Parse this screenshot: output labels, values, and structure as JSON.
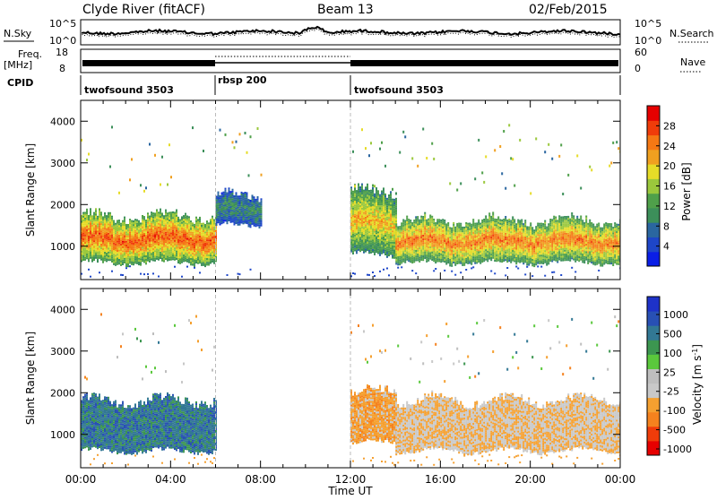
{
  "header": {
    "station": "Clyde River (fitACF)",
    "beam": "Beam 13",
    "date": "02/Feb/2015"
  },
  "noise_panel": {
    "left_label": "N.Sky",
    "left_ticks": [
      "10^5",
      "10^0"
    ],
    "right_ticks": [
      "10^5",
      "10^0"
    ],
    "right_label": "N.Search"
  },
  "freq_panel": {
    "left_label_line1": "Freq.",
    "left_label_line2": "[MHz]",
    "left_ticks": [
      "18",
      "8"
    ],
    "right_ticks": [
      "60",
      "0"
    ],
    "right_label": "Nave"
  },
  "cpid": {
    "label": "CPID",
    "segments": [
      {
        "name": "twofsound 3503",
        "start_hour": 0,
        "end_hour": 6
      },
      {
        "name": "rbsp 200",
        "start_hour": 6,
        "end_hour": 12
      },
      {
        "name": "twofsound 3503",
        "start_hour": 12,
        "end_hour": 24
      }
    ]
  },
  "time_axis": {
    "label": "Time UT",
    "ticks": [
      "00:00",
      "04:00",
      "08:00",
      "12:00",
      "16:00",
      "20:00",
      "00:00"
    ]
  },
  "colors": {
    "power_scale": [
      "#0a1ee6",
      "#1e46c8",
      "#2a66a0",
      "#3c8f5a",
      "#4fa04a",
      "#9bc83c",
      "#e6dc28",
      "#f0a020",
      "#f57814",
      "#f03c0a",
      "#e60000"
    ],
    "velocity_scale": [
      "#e60000",
      "#f03c0a",
      "#f5821e",
      "#f5a030",
      "#c8c8c8",
      "#bebebe",
      "#5ac83c",
      "#3c9650",
      "#327894",
      "#2850b4",
      "#1e32c8"
    ]
  },
  "chart_data": [
    {
      "type": "heatmap",
      "name": "power",
      "ylabel": "Slant Range [km]",
      "ylim": [
        200,
        4500
      ],
      "xlim_hours": [
        0,
        24
      ],
      "yticks": [
        "1000",
        "2000",
        "3000",
        "4000"
      ],
      "colorbar": {
        "label": "Power [dB]",
        "range": [
          0,
          32
        ],
        "ticks": [
          "4",
          "8",
          "12",
          "16",
          "20",
          "24",
          "28"
        ]
      },
      "series": [
        {
          "segment": "00:00-06:00",
          "x_hours": [
            0,
            6
          ],
          "main_echo_km": [
            600,
            1700
          ],
          "value_db": 28
        },
        {
          "segment": "06:00-08:00",
          "x_hours": [
            6,
            8
          ],
          "main_echo_km": [
            1500,
            2200
          ],
          "value_db": 10
        },
        {
          "segment": "12:00-14:00",
          "x_hours": [
            12,
            14
          ],
          "main_echo_km": [
            800,
            2300
          ],
          "value_db": 22
        },
        {
          "segment": "14:00-24:00",
          "x_hours": [
            14,
            24
          ],
          "main_echo_km": [
            600,
            1600
          ],
          "value_db": 26
        }
      ]
    },
    {
      "type": "heatmap",
      "name": "velocity",
      "ylabel": "Slant Range [km]",
      "ylim": [
        200,
        4500
      ],
      "xlim_hours": [
        0,
        24
      ],
      "yticks": [
        "1000",
        "2000",
        "3000",
        "4000"
      ],
      "colorbar": {
        "label": "Velocity [m s^-1]",
        "ticks": [
          "1000",
          "500",
          "100",
          "25",
          "-25",
          "-100",
          "-500",
          "-1000"
        ]
      },
      "series": [
        {
          "segment": "00:00-06:00",
          "x_hours": [
            0,
            6
          ],
          "main_echo_km": [
            600,
            1800
          ],
          "value_ms": 500
        },
        {
          "segment": "12:00-14:00",
          "x_hours": [
            12,
            14
          ],
          "main_echo_km": [
            800,
            2000
          ],
          "value_ms": -500
        },
        {
          "segment": "14:00-24:00",
          "x_hours": [
            14,
            24
          ],
          "main_echo_km": [
            600,
            1800
          ],
          "value_ms": -300
        }
      ]
    }
  ]
}
